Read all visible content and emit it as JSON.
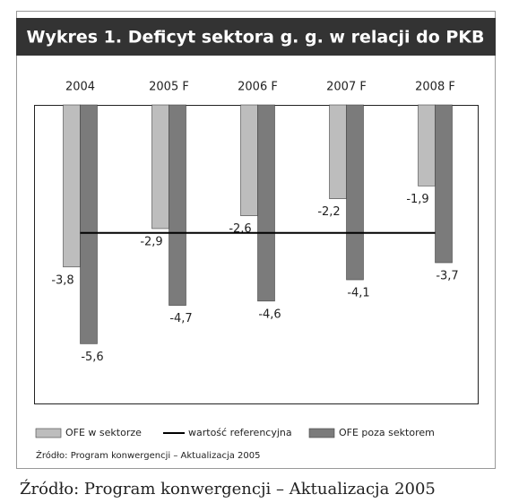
{
  "chart_data": {
    "type": "bar",
    "title": "Wykres 1. Deficyt sektora g. g. w relacji do PKB",
    "categories": [
      "2004",
      "2005 F",
      "2006 F",
      "2007 F",
      "2008 F"
    ],
    "series": [
      {
        "name": "OFE w sektorze",
        "color": "#bdbdbd",
        "values": [
          -3.8,
          -2.9,
          -2.6,
          -2.2,
          -1.9
        ],
        "value_labels": [
          "-3,8",
          "-2,9",
          "-2,6",
          "-2,2",
          "-1,9"
        ]
      },
      {
        "name": "OFE poza sektorem",
        "color": "#7b7b7b",
        "values": [
          -5.6,
          -4.7,
          -4.6,
          -4.1,
          -3.7
        ],
        "value_labels": [
          "-5,6",
          "-4,7",
          "-4,6",
          "-4,1",
          "-3,7"
        ]
      }
    ],
    "reference": {
      "name": "wartość referencyjna",
      "value": -3,
      "color": "#000000"
    },
    "ylim": [
      -7,
      0
    ],
    "source": "Źródło: Program konwergencji – Aktualizacja 2005",
    "caption": "Źródło: Program konwergencji – Aktualizacja 2005"
  }
}
